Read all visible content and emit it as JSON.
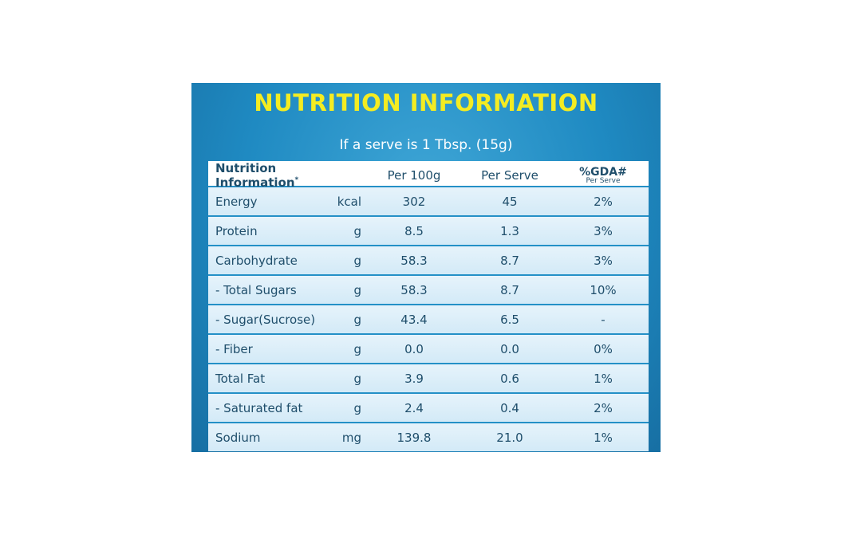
{
  "title": "NUTRITION INFORMATION",
  "subtitle": "If a serve is 1 Tbsp. (15g)",
  "header": {
    "name": "Nutrition Information",
    "name_mark": "*",
    "per100": "Per 100g",
    "perserve": "Per Serve",
    "gda": "%GDA#",
    "gda_sub": "Per Serve"
  },
  "rows": [
    {
      "name": "Energy",
      "unit": "kcal",
      "per100": "302",
      "perserve": "45",
      "gda": "2%"
    },
    {
      "name": "Protein",
      "unit": "g",
      "per100": "8.5",
      "perserve": "1.3",
      "gda": "3%"
    },
    {
      "name": "Carbohydrate",
      "unit": "g",
      "per100": "58.3",
      "perserve": "8.7",
      "gda": "3%"
    },
    {
      "name": "- Total Sugars",
      "unit": "g",
      "per100": "58.3",
      "perserve": "8.7",
      "gda": "10%"
    },
    {
      "name": "- Sugar(Sucrose)",
      "unit": "g",
      "per100": "43.4",
      "perserve": "6.5",
      "gda": "-"
    },
    {
      "name": "- Fiber",
      "unit": "g",
      "per100": "0.0",
      "perserve": "0.0",
      "gda": "0%"
    },
    {
      "name": "Total Fat",
      "unit": "g",
      "per100": "3.9",
      "perserve": "0.6",
      "gda": "1%"
    },
    {
      "name": "- Saturated fat",
      "unit": "g",
      "per100": "2.4",
      "perserve": "0.4",
      "gda": "2%"
    },
    {
      "name": "Sodium",
      "unit": "mg",
      "per100": "139.8",
      "perserve": "21.0",
      "gda": "1%"
    }
  ],
  "colors": {
    "title": "#f4ec22",
    "panel": "#1f8ac2",
    "text": "#1f4e6b"
  }
}
